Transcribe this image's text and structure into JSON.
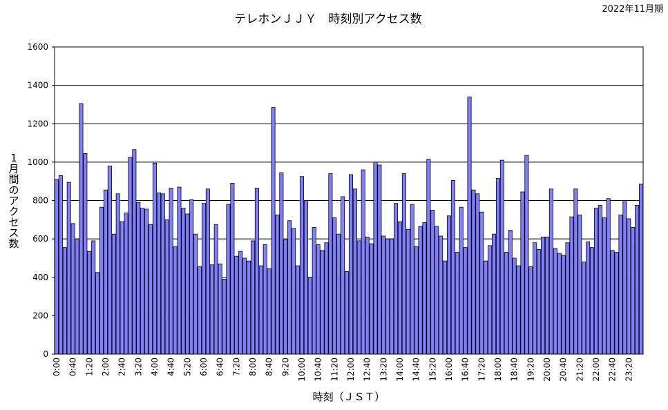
{
  "chart_data": {
    "type": "bar",
    "title": "テレホンＪＪＹ　時刻別アクセス数",
    "period": "2022年11月期",
    "xlabel": "時刻（ＪＳＴ）",
    "ylabel": "1月間のアクセス数",
    "ylim": [
      0,
      1600
    ],
    "yticks": [
      0,
      200,
      400,
      600,
      800,
      1000,
      1200,
      1400,
      1600
    ],
    "grid": true,
    "x_tick_labels": [
      "0:00",
      "0:40",
      "1:20",
      "2:00",
      "2:40",
      "3:20",
      "4:00",
      "4:40",
      "5:20",
      "6:00",
      "6:40",
      "7:20",
      "8:00",
      "8:40",
      "9:20",
      "10:00",
      "10:40",
      "11:20",
      "12:00",
      "12:40",
      "13:20",
      "14:00",
      "14:40",
      "15:20",
      "16:00",
      "16:40",
      "17:20",
      "18:00",
      "18:40",
      "19:20",
      "20:00",
      "20:40",
      "21:20",
      "22:00",
      "22:40",
      "23:20"
    ],
    "bar_color": "#8080ff",
    "interval_minutes": 10,
    "values": [
      910,
      930,
      555,
      895,
      680,
      600,
      1305,
      1045,
      535,
      590,
      425,
      765,
      855,
      980,
      625,
      835,
      690,
      735,
      1025,
      1065,
      790,
      760,
      755,
      675,
      995,
      840,
      835,
      700,
      865,
      560,
      870,
      760,
      730,
      805,
      625,
      455,
      785,
      860,
      465,
      675,
      470,
      390,
      780,
      890,
      510,
      535,
      500,
      485,
      590,
      865,
      460,
      570,
      445,
      1285,
      725,
      945,
      595,
      695,
      655,
      460,
      925,
      800,
      400,
      660,
      570,
      540,
      580,
      940,
      710,
      625,
      820,
      430,
      935,
      860,
      590,
      960,
      610,
      575,
      1000,
      985,
      615,
      600,
      600,
      785,
      690,
      940,
      650,
      780,
      560,
      665,
      685,
      1015,
      750,
      665,
      615,
      485,
      720,
      905,
      530,
      765,
      555,
      1340,
      855,
      835,
      740,
      485,
      565,
      625,
      915,
      1010,
      530,
      645,
      500,
      460,
      845,
      1035,
      455,
      580,
      545,
      610,
      610,
      860,
      550,
      525,
      515,
      580,
      715,
      860,
      725,
      480,
      585,
      555,
      760,
      775,
      710,
      810,
      540,
      530,
      725,
      800,
      705,
      660,
      775,
      885
    ]
  }
}
